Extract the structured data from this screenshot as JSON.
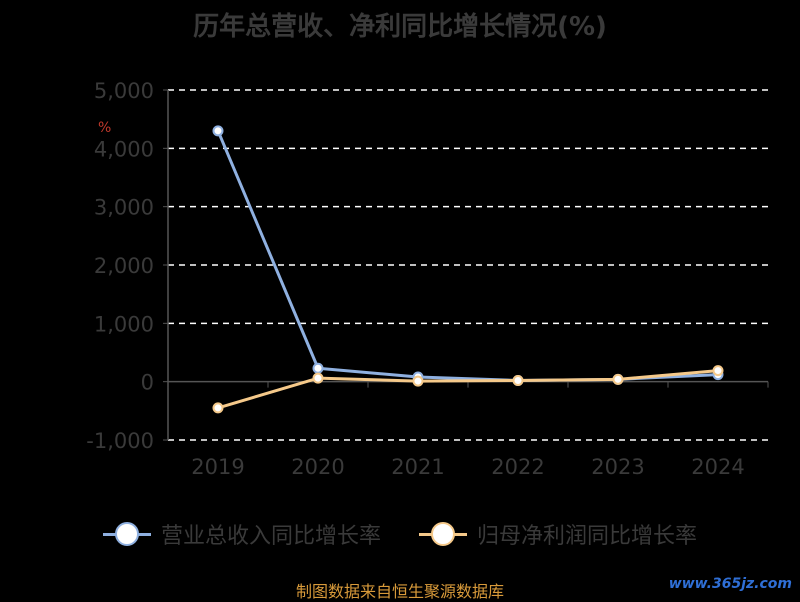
{
  "chart_data": {
    "type": "line",
    "title": "历年总营收、净利同比增长情况(%)",
    "categories": [
      "2019",
      "2020",
      "2021",
      "2022",
      "2023",
      "2024"
    ],
    "yticks": [
      "5,000",
      "4,000",
      "3,000",
      "2,000",
      "1,000",
      "0",
      "-1,000"
    ],
    "ylim": [
      -1000,
      5000
    ],
    "grid": true,
    "legend_position": "bottom",
    "series": [
      {
        "name": "营业总收入同比增长率",
        "values": [
          4300,
          230,
          80,
          20,
          40,
          120
        ],
        "color": "#8fb0e0"
      },
      {
        "name": "归母净利润同比增长率",
        "values": [
          -450,
          60,
          10,
          20,
          40,
          190
        ],
        "color": "#f5c98a"
      }
    ]
  },
  "source_note": "制图数据来自恒生聚源数据库",
  "watermark": "www.365jz.com",
  "pct_mark": "%"
}
